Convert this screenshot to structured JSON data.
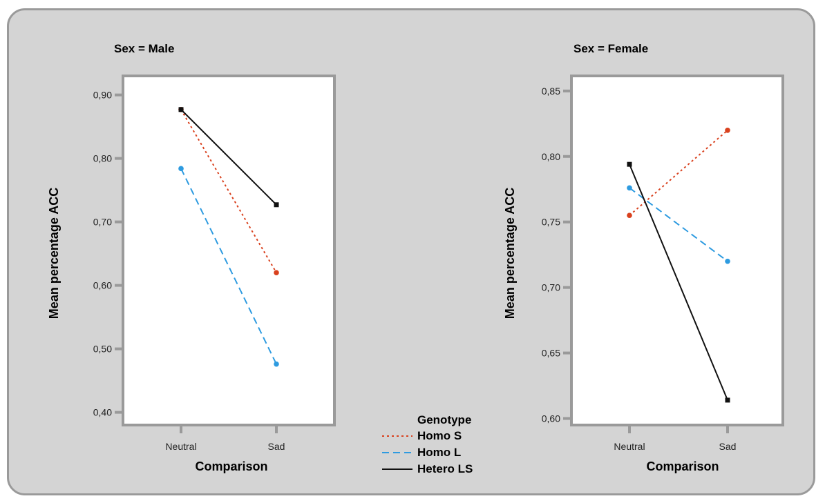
{
  "chart_data": [
    {
      "type": "line",
      "title": "Sex = Male",
      "xlabel": "Comparison",
      "ylabel": "Mean percentage ACC",
      "categories": [
        "Neutral",
        "Sad"
      ],
      "ylim": [
        0.38,
        0.93
      ],
      "yticks": [
        "0,40",
        "0,50",
        "0,60",
        "0,70",
        "0,80",
        "0,90"
      ],
      "ytick_values": [
        0.4,
        0.5,
        0.6,
        0.7,
        0.8,
        0.9
      ],
      "series": [
        {
          "name": "Homo S",
          "values": [
            0.877,
            0.62
          ]
        },
        {
          "name": "Homo L",
          "values": [
            0.784,
            0.476
          ]
        },
        {
          "name": "Hetero LS",
          "values": [
            0.877,
            0.727
          ]
        }
      ]
    },
    {
      "type": "line",
      "title": "Sex = Female",
      "xlabel": "Comparison",
      "ylabel": "Mean percentage ACC",
      "categories": [
        "Neutral",
        "Sad"
      ],
      "ylim": [
        0.595,
        0.8615
      ],
      "yticks": [
        "0,60",
        "0,65",
        "0,70",
        "0,75",
        "0,80",
        "0,85"
      ],
      "ytick_values": [
        0.6,
        0.65,
        0.7,
        0.75,
        0.8,
        0.85
      ],
      "series": [
        {
          "name": "Homo S",
          "values": [
            0.755,
            0.82
          ]
        },
        {
          "name": "Homo L",
          "values": [
            0.776,
            0.72
          ]
        },
        {
          "name": "Hetero LS",
          "values": [
            0.794,
            0.614
          ]
        }
      ]
    }
  ],
  "legend": {
    "title": "Genotype",
    "entries": [
      {
        "label": "Homo S",
        "color": "#d9411e",
        "style": "dotted",
        "marker": "circle"
      },
      {
        "label": "Homo L",
        "color": "#2e9be0",
        "style": "dashed",
        "marker": "circle"
      },
      {
        "label": "Hetero LS",
        "color": "#111111",
        "style": "solid",
        "marker": "square"
      }
    ]
  },
  "colors": {
    "background": "#d4d4d4",
    "plot_bg": "#ffffff",
    "axis": "#9a9a9a"
  }
}
